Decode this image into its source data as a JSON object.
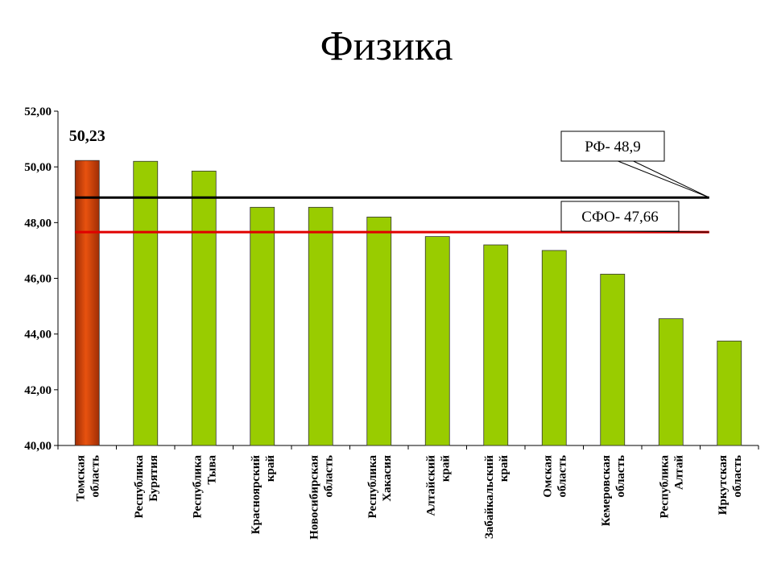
{
  "page": {
    "title": "Физика"
  },
  "colors": {
    "highlight_bar": "#e8520f",
    "highlight_bar_dark": "#a02e05",
    "bar": "#99cc00",
    "rf_line": "#000000",
    "sfo_line": "#e00000",
    "axis": "#000000"
  },
  "chart_data": {
    "type": "bar",
    "title": "Физика",
    "xlabel": "",
    "ylabel": "",
    "ylim": [
      40,
      52
    ],
    "yticks": [
      "40,00",
      "42,00",
      "44,00",
      "46,00",
      "48,00",
      "50,00",
      "52,00"
    ],
    "grid": false,
    "categories": [
      [
        "Томская",
        "область"
      ],
      [
        "Республика",
        "Бурятия"
      ],
      [
        "Республика",
        "Тыва"
      ],
      [
        "Красноярский",
        "край"
      ],
      [
        "Новосибирская",
        "область"
      ],
      [
        "Республика",
        "Хакасия"
      ],
      [
        "Алтайский",
        "край"
      ],
      [
        "Забайкальский",
        "край"
      ],
      [
        "Омская",
        "область"
      ],
      [
        "Кемеровская",
        "область"
      ],
      [
        "Республика",
        "Алтай"
      ],
      [
        "Иркутская",
        "область"
      ]
    ],
    "values": [
      50.23,
      50.2,
      49.85,
      48.55,
      48.55,
      48.2,
      47.5,
      47.2,
      47.0,
      46.15,
      44.55,
      43.75
    ],
    "highlight_index": 0,
    "data_label": "50,23",
    "reference_lines": [
      {
        "label": "РФ- 48,9",
        "value": 48.9,
        "color": "#000000"
      },
      {
        "label": "СФО- 47,66",
        "value": 47.66,
        "color": "#e00000"
      }
    ]
  }
}
